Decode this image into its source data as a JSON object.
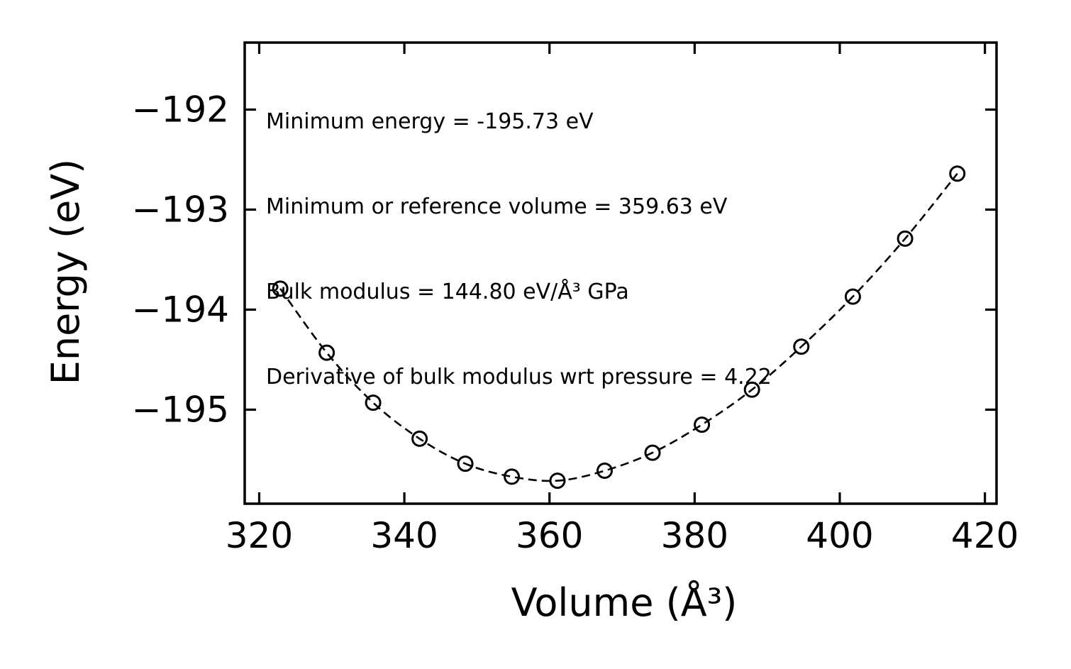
{
  "figure": {
    "background": "#ffffff",
    "line_color": "#000000"
  },
  "annotation": {
    "line1": "Minimum energy = -195.73 eV",
    "line2": "Minimum or reference volume = 359.63 eV",
    "line3": "Bulk modulus = 144.80 eV/Å³ GPa",
    "line4": "Derivative of bulk modulus wrt pressure = 4.22"
  },
  "chart_data": {
    "type": "scatter",
    "title": "",
    "xlabel": "Volume (Å³)",
    "ylabel": "Energy (eV)",
    "xlim": [
      318.0,
      421.6
    ],
    "ylim": [
      -195.94,
      -191.33
    ],
    "grid": false,
    "legend": null,
    "xticks": {
      "values": [
        320,
        340,
        360,
        380,
        400,
        420
      ],
      "labels": [
        "320",
        "340",
        "360",
        "380",
        "400",
        "420"
      ]
    },
    "yticks": {
      "values": [
        -192,
        -193,
        -194,
        -195
      ],
      "labels": [
        "−192",
        "−193",
        "−194",
        "−195"
      ]
    },
    "series": [
      {
        "name": "equation-of-state-scan",
        "marker": "open-circle",
        "line_style": "dashed",
        "x": [
          322.9,
          329.3,
          335.7,
          342.1,
          348.4,
          354.8,
          361.1,
          367.6,
          374.2,
          381.0,
          387.9,
          394.7,
          401.8,
          409.0,
          416.2
        ],
        "y": [
          -193.79,
          -194.43,
          -194.93,
          -195.29,
          -195.54,
          -195.67,
          -195.71,
          -195.61,
          -195.43,
          -195.15,
          -194.8,
          -194.37,
          -193.87,
          -193.29,
          -192.64
        ]
      }
    ],
    "fit_parameters": {
      "minimum_energy_eV": -195.73,
      "reference_volume": 359.63,
      "bulk_modulus": 144.8,
      "bulk_modulus_pressure_derivative": 4.22
    }
  }
}
